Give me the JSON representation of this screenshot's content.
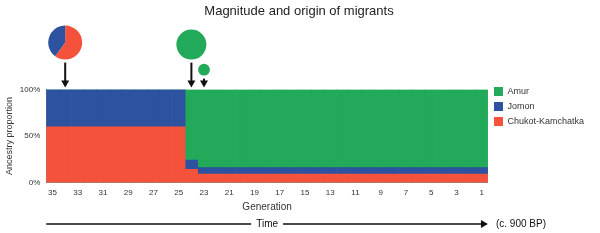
{
  "chart_data": {
    "type": "bar",
    "title": "Magnitude and origin of migrants",
    "x_label": "Generation",
    "y_label": "Ancestry proportion",
    "annotations": [
      "Time",
      "(c. 900 BP)"
    ],
    "categories": [
      "35",
      null,
      "33",
      null,
      "31",
      null,
      "29",
      null,
      "27",
      null,
      "25",
      null,
      "23",
      null,
      "21",
      null,
      "19",
      null,
      "17",
      null,
      "15",
      null,
      "13",
      null,
      "11",
      null,
      "9",
      null,
      "7",
      null,
      "5",
      null,
      "3",
      null,
      "1"
    ],
    "series": [
      {
        "name": "Chukot-Kamchatka",
        "color": "#f4523b",
        "values": [
          60,
          60,
          60,
          60,
          60,
          60,
          60,
          60,
          60,
          60,
          60,
          14,
          9,
          9,
          9,
          9,
          9,
          9,
          9,
          9,
          9,
          9,
          9,
          9,
          9,
          9,
          9,
          9,
          9,
          9,
          9,
          9,
          9,
          9,
          9
        ]
      },
      {
        "name": "Jomon",
        "color": "#2c52a0",
        "values": [
          40,
          40,
          40,
          40,
          40,
          40,
          40,
          40,
          40,
          40,
          40,
          10,
          7,
          7,
          7,
          7,
          7,
          7,
          7,
          7,
          7,
          7,
          7,
          7,
          7,
          7,
          7,
          7,
          7,
          7,
          7,
          7,
          7,
          7,
          7
        ]
      },
      {
        "name": "Amur",
        "color": "#22a95a",
        "values": [
          0,
          0,
          0,
          0,
          0,
          0,
          0,
          0,
          0,
          0,
          0,
          76,
          84,
          84,
          84,
          84,
          84,
          84,
          84,
          84,
          84,
          84,
          84,
          84,
          84,
          84,
          84,
          84,
          84,
          84,
          84,
          84,
          84,
          84,
          84
        ]
      }
    ],
    "migrants": [
      {
        "generation": 34,
        "magnitude": 1,
        "values": [
          60,
          40,
          0
        ]
      },
      {
        "generation": 24,
        "magnitude": 0.78,
        "values": [
          0,
          0,
          100
        ]
      },
      {
        "generation": 23,
        "magnitude": 0.12,
        "values": [
          0,
          0,
          100
        ]
      }
    ],
    "stacked": true,
    "ylim": [
      0,
      100
    ],
    "yticks": [
      {
        "value": 0,
        "label": "0%"
      },
      {
        "value": 50,
        "label": "50%"
      },
      {
        "value": 100,
        "label": "100%"
      }
    ],
    "grid": false,
    "legend": "right"
  }
}
